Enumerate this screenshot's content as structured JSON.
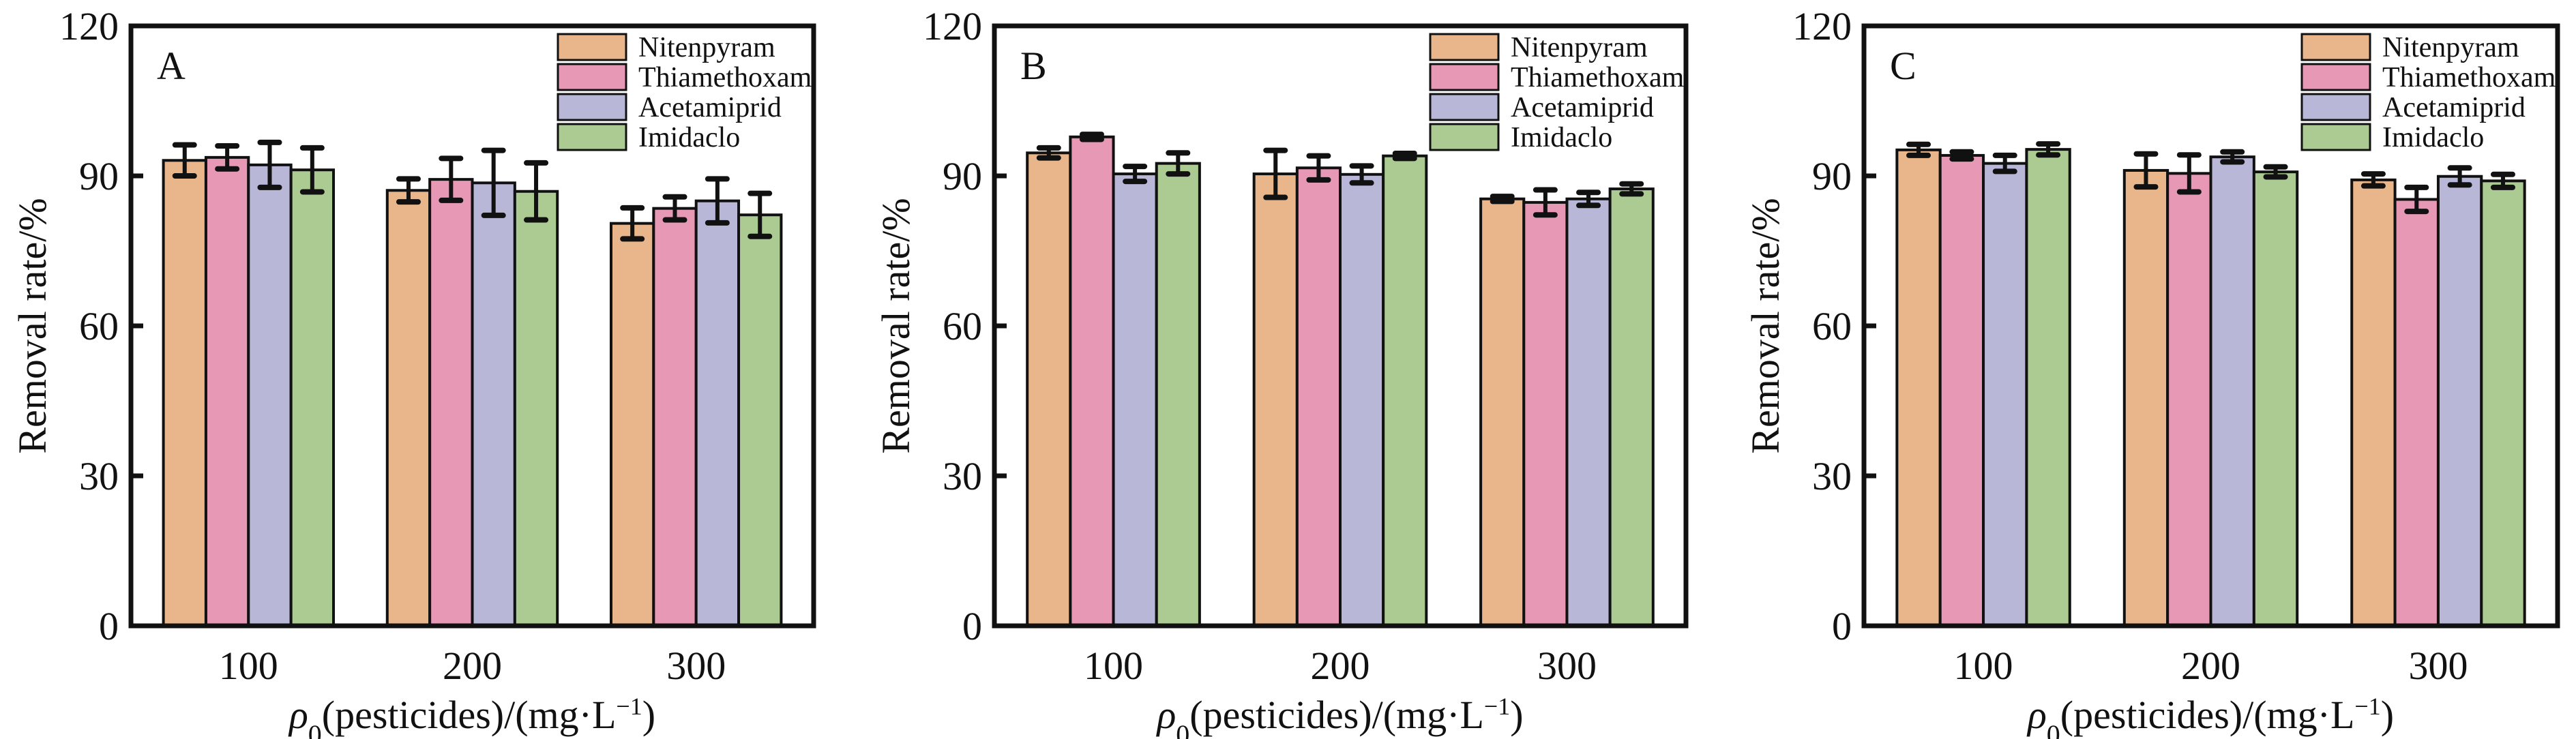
{
  "chart_data": [
    {
      "type": "bar",
      "panel_label": "A",
      "categories": [
        "100",
        "200",
        "300"
      ],
      "xlabel": "ρ0(pesticides)/(mg·L−1)",
      "xlabel_parts": {
        "rho": "ρ",
        "sub": "0",
        "mid": "(pesticides)/(mg·L",
        "sup": "−1",
        "end": ")"
      },
      "ylabel": "Removal rate/%",
      "ylim": [
        0,
        120
      ],
      "yticks": [
        0,
        30,
        60,
        90,
        120
      ],
      "grid": false,
      "legend_position": "top-right",
      "series": [
        {
          "name": "Nitenpyram",
          "color": "#E8B68A",
          "values": [
            93.1,
            87.1,
            80.5
          ],
          "errors": [
            3.1,
            2.3,
            3.1
          ]
        },
        {
          "name": "Thiamethoxam",
          "color": "#E698B5",
          "values": [
            93.7,
            89.3,
            83.5
          ],
          "errors": [
            2.3,
            4.2,
            2.3
          ]
        },
        {
          "name": "Acetamiprid",
          "color": "#B8B7D8",
          "values": [
            92.2,
            88.6,
            85.0
          ],
          "errors": [
            4.5,
            6.5,
            4.4
          ]
        },
        {
          "name": "Imidaclo",
          "color": "#ABCB92",
          "values": [
            91.2,
            86.9,
            82.2
          ],
          "errors": [
            4.4,
            5.7,
            4.3
          ]
        }
      ]
    },
    {
      "type": "bar",
      "panel_label": "B",
      "categories": [
        "100",
        "200",
        "300"
      ],
      "xlabel": "ρ0(pesticides)/(mg·L−1)",
      "xlabel_parts": {
        "rho": "ρ",
        "sub": "0",
        "mid": "(pesticides)/(mg·L",
        "sup": "−1",
        "end": ")"
      },
      "ylabel": "Removal rate/%",
      "ylim": [
        0,
        120
      ],
      "yticks": [
        0,
        30,
        60,
        90,
        120
      ],
      "grid": false,
      "legend_position": "top-right",
      "series": [
        {
          "name": "Nitenpyram",
          "color": "#E8B68A",
          "values": [
            94.6,
            90.4,
            85.4
          ],
          "errors": [
            1.0,
            4.7,
            0.5
          ]
        },
        {
          "name": "Thiamethoxam",
          "color": "#E698B5",
          "values": [
            97.8,
            91.6,
            84.7
          ],
          "errors": [
            0.5,
            2.4,
            2.5
          ]
        },
        {
          "name": "Acetamiprid",
          "color": "#B8B7D8",
          "values": [
            90.4,
            90.3,
            85.4
          ],
          "errors": [
            1.5,
            1.7,
            1.3
          ]
        },
        {
          "name": "Imidaclo",
          "color": "#ABCB92",
          "values": [
            92.5,
            94.0,
            87.4
          ],
          "errors": [
            2.1,
            0.5,
            1.0
          ]
        }
      ]
    },
    {
      "type": "bar",
      "panel_label": "C",
      "categories": [
        "100",
        "200",
        "300"
      ],
      "xlabel": "ρ0(pesticides)/(mg·L−1)",
      "xlabel_parts": {
        "rho": "ρ",
        "sub": "0",
        "mid": "(pesticides)/(mg·L",
        "sup": "−1",
        "end": ")"
      },
      "ylabel": "Removal rate/%",
      "ylim": [
        0,
        120
      ],
      "yticks": [
        0,
        30,
        60,
        90,
        120
      ],
      "grid": false,
      "legend_position": "top-right",
      "series": [
        {
          "name": "Nitenpyram",
          "color": "#E8B68A",
          "values": [
            95.2,
            91.1,
            89.2
          ],
          "errors": [
            1.1,
            3.3,
            1.2
          ]
        },
        {
          "name": "Thiamethoxam",
          "color": "#E698B5",
          "values": [
            94.1,
            90.5,
            85.3
          ],
          "errors": [
            0.7,
            3.7,
            2.4
          ]
        },
        {
          "name": "Acetamiprid",
          "color": "#B8B7D8",
          "values": [
            92.5,
            93.8,
            89.9
          ],
          "errors": [
            1.6,
            1.0,
            1.7
          ]
        },
        {
          "name": "Imidaclo",
          "color": "#ABCB92",
          "values": [
            95.3,
            90.8,
            89.0
          ],
          "errors": [
            1.1,
            1.0,
            1.3
          ]
        }
      ]
    }
  ]
}
